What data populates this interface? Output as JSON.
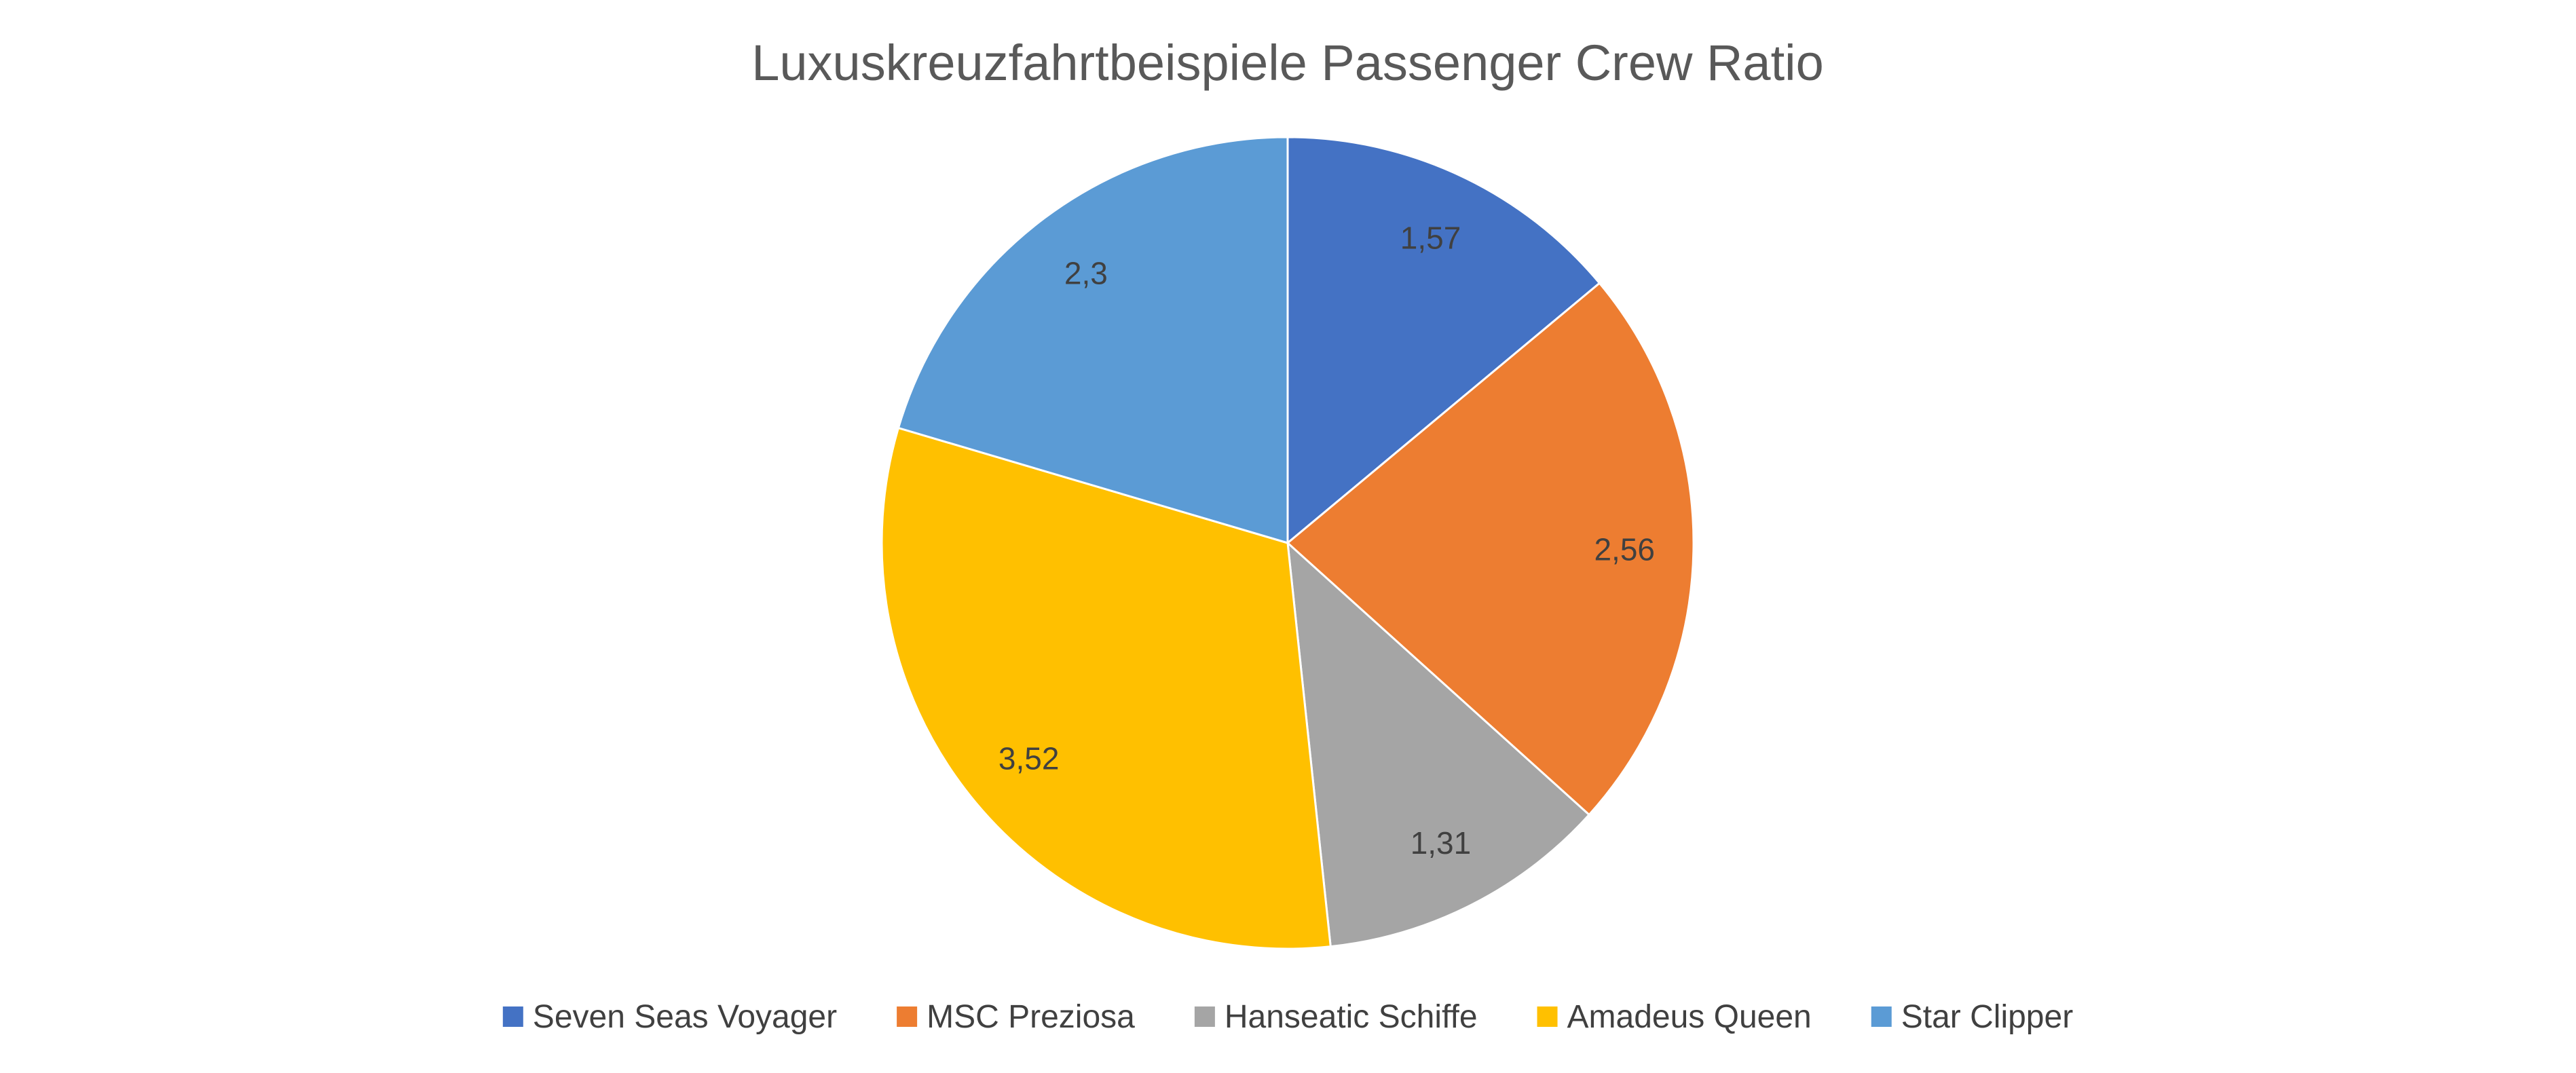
{
  "chart_data": {
    "type": "pie",
    "title": "Luxuskreuzfahrtbeispiele Passenger Crew Ratio",
    "categories": [
      "Seven Seas Voyager",
      "MSC Preziosa",
      "Hanseatic Schiffe",
      "Amadeus Queen",
      "Star Clipper"
    ],
    "values": [
      1.57,
      2.56,
      1.31,
      3.52,
      2.3
    ],
    "data_labels": [
      "1,57",
      "2,56",
      "1,31",
      "3,52",
      "2,3"
    ],
    "colors": [
      "#4472C4",
      "#ED7D31",
      "#A5A5A5",
      "#FFC000",
      "#5B9BD5"
    ],
    "legend_position": "bottom",
    "start_angle": "12 o'clock",
    "direction": "clockwise"
  }
}
